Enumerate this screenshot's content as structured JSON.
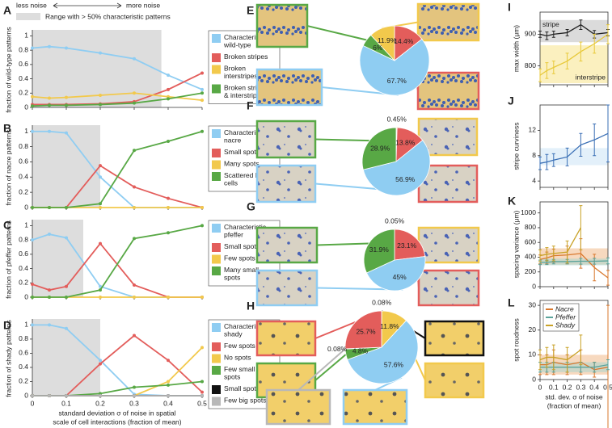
{
  "header": {
    "less": "less noise",
    "more": "more noise",
    "shade_legend": "Range with > 50% characteristic patterns"
  },
  "chart_data": [
    {
      "type": "line",
      "panel": "A",
      "ylabel": "fraction of wild-type patterns",
      "x": [
        0,
        0.05,
        0.1,
        0.2,
        0.3,
        0.4,
        0.5
      ],
      "xlim": [
        0,
        0.5
      ],
      "ylim": [
        0,
        1.05
      ],
      "xticks": [
        0,
        0.1,
        0.2,
        0.3,
        0.4,
        0.5
      ],
      "yticks": [
        0,
        0.2,
        0.4,
        0.6,
        0.8,
        1
      ],
      "shade": [
        0,
        0.38
      ],
      "shade_color": "#dddddd",
      "markers": true,
      "legend": "outside right",
      "series": [
        {
          "name": "Characteristic wild-type",
          "color": "#8fcdf2",
          "values": [
            0.83,
            0.85,
            0.83,
            0.76,
            0.68,
            0.45,
            0.25
          ]
        },
        {
          "name": "Broken stripes",
          "color": "#e35d5b",
          "values": [
            0.04,
            0.04,
            0.04,
            0.05,
            0.08,
            0.25,
            0.48
          ]
        },
        {
          "name": "Broken interstripes",
          "color": "#f2c94c",
          "values": [
            0.15,
            0.13,
            0.14,
            0.17,
            0.2,
            0.15,
            0.1
          ]
        },
        {
          "name": "Broken stripes & interstripes",
          "color": "#58a845",
          "values": [
            0.02,
            0.03,
            0.03,
            0.04,
            0.06,
            0.12,
            0.2
          ]
        }
      ]
    },
    {
      "type": "line",
      "panel": "B",
      "ylabel": "fraction of nacre patterns",
      "x": [
        0,
        0.05,
        0.1,
        0.2,
        0.3,
        0.4,
        0.5
      ],
      "xlim": [
        0,
        0.5
      ],
      "ylim": [
        0,
        1.05
      ],
      "xticks": [
        0,
        0.1,
        0.2,
        0.3,
        0.4,
        0.5
      ],
      "yticks": [
        0,
        0.2,
        0.4,
        0.6,
        0.8,
        1
      ],
      "shade": [
        0,
        0.2
      ],
      "shade_color": "#dddddd",
      "markers": true,
      "legend": "outside right",
      "series": [
        {
          "name": "Characteristic nacre",
          "color": "#8fcdf2",
          "values": [
            1,
            1,
            0.98,
            0.4,
            0,
            0,
            0
          ]
        },
        {
          "name": "Small spots",
          "color": "#e35d5b",
          "values": [
            0,
            0,
            0,
            0.55,
            0.27,
            0.12,
            0
          ]
        },
        {
          "name": "Many spots",
          "color": "#f2c94c",
          "values": [
            0,
            0,
            0,
            0,
            0,
            0,
            0
          ]
        },
        {
          "name": "Scattered blue cells",
          "color": "#58a845",
          "values": [
            0,
            0,
            0,
            0.05,
            0.75,
            0.87,
            1
          ]
        }
      ]
    },
    {
      "type": "line",
      "panel": "C",
      "ylabel": "fraction of pfeffer patterns",
      "x": [
        0,
        0.05,
        0.1,
        0.2,
        0.3,
        0.4,
        0.5
      ],
      "xlim": [
        0,
        0.5
      ],
      "ylim": [
        0,
        1.05
      ],
      "xticks": [
        0,
        0.1,
        0.2,
        0.3,
        0.4,
        0.5
      ],
      "yticks": [
        0,
        0.2,
        0.4,
        0.6,
        0.8,
        1
      ],
      "shade": [
        0,
        0.15
      ],
      "shade_color": "#dddddd",
      "markers": true,
      "legend": "outside right",
      "series": [
        {
          "name": "Characteristic pfeffer",
          "color": "#8fcdf2",
          "values": [
            0.8,
            0.88,
            0.83,
            0.15,
            0,
            0,
            0
          ]
        },
        {
          "name": "Small spots",
          "color": "#e35d5b",
          "values": [
            0.18,
            0.1,
            0.15,
            0.75,
            0.17,
            0,
            0
          ]
        },
        {
          "name": "Few spots",
          "color": "#f2c94c",
          "values": [
            0,
            0,
            0,
            0,
            0,
            0,
            0
          ]
        },
        {
          "name": "Many small spots",
          "color": "#58a845",
          "values": [
            0,
            0,
            0,
            0.1,
            0.82,
            0.9,
            1
          ]
        }
      ]
    },
    {
      "type": "line",
      "panel": "D",
      "ylabel": "fraction of shady patterns",
      "xlabel": [
        "standard deviation σ of noise in spatial",
        "scale of cell interactions (fraction of mean)"
      ],
      "show_xtick_labels": true,
      "x": [
        0,
        0.05,
        0.1,
        0.2,
        0.3,
        0.4,
        0.5
      ],
      "xlim": [
        0,
        0.5
      ],
      "ylim": [
        0,
        1.05
      ],
      "xticks": [
        0,
        0.1,
        0.2,
        0.3,
        0.4,
        0.5
      ],
      "yticks": [
        0,
        0.2,
        0.4,
        0.6,
        0.8,
        1
      ],
      "shade": [
        0,
        0.2
      ],
      "shade_color": "#dddddd",
      "markers": true,
      "legend": "outside right",
      "series": [
        {
          "name": "Characteristic shady",
          "color": "#8fcdf2",
          "values": [
            1,
            1,
            0.95,
            0.5,
            0.02,
            0,
            0
          ]
        },
        {
          "name": "Few spots",
          "color": "#e35d5b",
          "values": [
            0,
            0,
            0,
            0.45,
            0.85,
            0.5,
            0.05
          ]
        },
        {
          "name": "No spots",
          "color": "#f2c94c",
          "values": [
            0,
            0,
            0,
            0,
            0,
            0.2,
            0.68
          ]
        },
        {
          "name": "Few small spots",
          "color": "#58a845",
          "values": [
            0,
            0,
            0,
            0.03,
            0.12,
            0.15,
            0.2
          ]
        },
        {
          "name": "Small spots",
          "color": "#111111",
          "values": [
            0,
            0,
            0,
            0,
            0,
            0,
            0
          ]
        },
        {
          "name": "Few big spots",
          "color": "#b8b8b8",
          "values": [
            0,
            0,
            0,
            0,
            0,
            0,
            0
          ]
        }
      ]
    },
    {
      "type": "pie",
      "panel": "E",
      "values": [
        14.4,
        67.7,
        6,
        11.9
      ],
      "value_labels": [
        "14.4%",
        "67.7%",
        "6%",
        "11.9%"
      ],
      "colors": [
        "#e35d5b",
        "#8fcdf2",
        "#58a845",
        "#f2c94c"
      ]
    },
    {
      "type": "pie",
      "panel": "F",
      "values": [
        0.45,
        13.8,
        56.9,
        28.9
      ],
      "value_labels": [
        "0.45%",
        "13.8%",
        "56.9%",
        "28.9%"
      ],
      "colors": [
        "#f2c94c",
        "#e35d5b",
        "#8fcdf2",
        "#58a845"
      ]
    },
    {
      "type": "pie",
      "panel": "G",
      "values": [
        0.05,
        23.1,
        45,
        31.9
      ],
      "value_labels": [
        "0.05%",
        "23.1%",
        "45%",
        "31.9%"
      ],
      "colors": [
        "#f2c94c",
        "#e35d5b",
        "#8fcdf2",
        "#58a845"
      ]
    },
    {
      "type": "pie",
      "panel": "H",
      "values": [
        0.08,
        11.8,
        57.6,
        4.8,
        0.08,
        25.7
      ],
      "value_labels": [
        "0.08%",
        "11.8%",
        "57.6%",
        "4.8%",
        "0.08%",
        "25.7%"
      ],
      "colors": [
        "#111111",
        "#f2c94c",
        "#8fcdf2",
        "#58a845",
        "#b8b8b8",
        "#e35d5b"
      ]
    },
    {
      "type": "line",
      "panel": "I",
      "ylabel": "max width (μm)",
      "x": [
        0,
        0.05,
        0.1,
        0.2,
        0.3,
        0.4,
        0.5
      ],
      "xlim": [
        0,
        0.5
      ],
      "ylim": [
        740,
        970
      ],
      "xticks": [
        0,
        0.1,
        0.2,
        0.3,
        0.4,
        0.5
      ],
      "yticks": [
        800,
        900
      ],
      "bands": [
        {
          "label": "stripe",
          "range": [
            875,
            945
          ],
          "color": "#bdbdbd"
        },
        {
          "label": "interstripe",
          "range": [
            745,
            865
          ],
          "color": "#f7e38a"
        }
      ],
      "series": [
        {
          "color": "#222222",
          "values": [
            900,
            895,
            900,
            905,
            930,
            900,
            905
          ],
          "errors": [
            10,
            12,
            10,
            10,
            15,
            12,
            10
          ]
        },
        {
          "color": "#e8c93a",
          "values": [
            770,
            785,
            795,
            815,
            845,
            870,
            900
          ],
          "errors": [
            20,
            25,
            20,
            25,
            30,
            30,
            30
          ]
        }
      ]
    },
    {
      "type": "line",
      "panel": "J",
      "ylabel": "stripe curviness",
      "x": [
        0,
        0.05,
        0.1,
        0.2,
        0.3,
        0.4,
        0.5
      ],
      "xlim": [
        0,
        0.5
      ],
      "ylim": [
        3,
        16
      ],
      "xticks": [
        0,
        0.1,
        0.2,
        0.3,
        0.4,
        0.5
      ],
      "yticks": [
        4,
        8,
        12
      ],
      "bands": [
        {
          "range": [
            6.5,
            9.2
          ],
          "color": "#cce4f6"
        }
      ],
      "series": [
        {
          "color": "#3a6fb5",
          "values": [
            6.8,
            7,
            7.3,
            7.8,
            9.7,
            10.5,
            11.5
          ],
          "errors": [
            1,
            1.2,
            1,
            1.4,
            1.8,
            2.5,
            4.5
          ]
        }
      ]
    },
    {
      "type": "line",
      "panel": "K",
      "ylabel": "spacing variance (μm)",
      "x": [
        0,
        0.05,
        0.1,
        0.2,
        0.3,
        0.4,
        0.5
      ],
      "xlim": [
        0,
        0.5
      ],
      "ylim": [
        0,
        1150
      ],
      "xticks": [
        0,
        0.1,
        0.2,
        0.3,
        0.4,
        0.5
      ],
      "yticks": [
        0,
        200,
        400,
        600,
        800,
        1000
      ],
      "bands": [
        {
          "range": [
            300,
            520
          ],
          "color": "#f1b98a"
        },
        {
          "range": [
            290,
            380
          ],
          "color": "#a9d6cf"
        }
      ],
      "series": [
        {
          "color": "#d9782d",
          "values": [
            370,
            390,
            420,
            430,
            450,
            260,
            120
          ],
          "errors": [
            60,
            80,
            90,
            120,
            200,
            180,
            100
          ]
        },
        {
          "color": "#5aa39b",
          "values": [
            330,
            330,
            340,
            340,
            345,
            345,
            350
          ],
          "errors": [
            30,
            30,
            30,
            30,
            40,
            40,
            40
          ]
        },
        {
          "color": "#c9a227",
          "values": [
            420,
            440,
            450,
            470,
            800,
            null,
            null
          ],
          "errors": [
            80,
            90,
            100,
            150,
            300,
            null,
            null
          ]
        }
      ]
    },
    {
      "type": "line",
      "panel": "L",
      "ylabel": "spot roudness",
      "xlabel": [
        "std. dev. σ of noise",
        "(fraction of mean)"
      ],
      "show_xtick_labels": true,
      "x": [
        0,
        0.05,
        0.1,
        0.2,
        0.3,
        0.4,
        0.5
      ],
      "xlim": [
        0,
        0.5
      ],
      "ylim": [
        0,
        32
      ],
      "xticks": [
        0,
        0.1,
        0.2,
        0.3,
        0.4,
        0.5
      ],
      "yticks": [
        0,
        10,
        20,
        30
      ],
      "legend": "upper left",
      "bands": [
        {
          "range": [
            2,
            10
          ],
          "color": "#f1b98a"
        },
        {
          "range": [
            3,
            7
          ],
          "color": "#a9d6cf"
        }
      ],
      "series": [
        {
          "name": "Nacre",
          "color": "#d9782d",
          "values": [
            6,
            6,
            7,
            6,
            7,
            4,
            5
          ],
          "errors": [
            4,
            4,
            5,
            4,
            5,
            3,
            25
          ]
        },
        {
          "name": "Pfeffer",
          "color": "#5aa39b",
          "values": [
            5,
            5,
            5,
            5,
            5,
            5,
            6
          ],
          "errors": [
            2,
            2,
            2,
            2,
            2,
            2,
            2
          ]
        },
        {
          "name": "Shady",
          "color": "#c9a227",
          "values": [
            8,
            9,
            9,
            8,
            12,
            null,
            null
          ],
          "errors": [
            4,
            4,
            5,
            5,
            6,
            null,
            null
          ]
        }
      ]
    }
  ]
}
